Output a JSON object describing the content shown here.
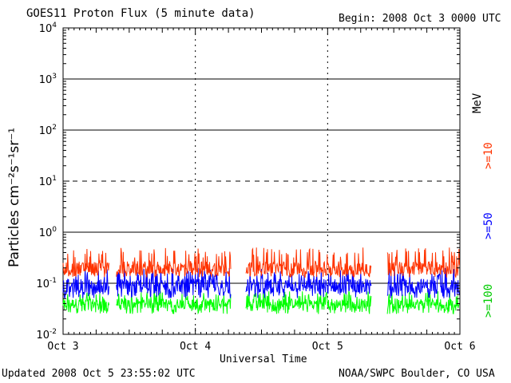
{
  "header": {
    "title": "GOES11 Proton Flux (5 minute data)",
    "begin": "Begin: 2008 Oct 3 0000 UTC"
  },
  "footer": {
    "updated": "Updated 2008 Oct  5 23:55:02 UTC",
    "credit": "NOAA/SWPC Boulder, CO USA"
  },
  "colors": {
    "ge10": "#ff3300",
    "ge50": "#0000ff",
    "ge100": "#00ff00",
    "axis": "#000000"
  },
  "chart_data": {
    "type": "line",
    "title": "GOES11 Proton Flux (5 minute data)",
    "xlabel": "Universal Time",
    "ylabel": "Particles cm⁻²s⁻¹sr⁻¹",
    "yscale": "log",
    "ylim": [
      0.01,
      10000
    ],
    "xlim": [
      0,
      3
    ],
    "x_unit": "days since 2008 Oct 3 0000 UTC",
    "x_ticks": [
      {
        "x": 0,
        "label": "Oct 3"
      },
      {
        "x": 1,
        "label": "Oct 4"
      },
      {
        "x": 2,
        "label": "Oct 5"
      },
      {
        "x": 3,
        "label": "Oct 6"
      }
    ],
    "y_ticks": [
      {
        "exp": -2,
        "base": "10",
        "sup": "-2"
      },
      {
        "exp": -1,
        "base": "10",
        "sup": "-1"
      },
      {
        "exp": 0,
        "base": "10",
        "sup": "0"
      },
      {
        "exp": 1,
        "base": "10",
        "sup": "1"
      },
      {
        "exp": 2,
        "base": "10",
        "sup": "2"
      },
      {
        "exp": 3,
        "base": "10",
        "sup": "3"
      },
      {
        "exp": 4,
        "base": "10",
        "sup": "4"
      }
    ],
    "reference_lines": [
      {
        "value": 1000,
        "style": "solid"
      },
      {
        "value": 100,
        "style": "solid"
      },
      {
        "value": 10,
        "style": "dashed"
      },
      {
        "value": 1,
        "style": "solid"
      },
      {
        "value": 0.1,
        "style": "solid"
      }
    ],
    "energy_unit": "MeV",
    "data_gaps": [
      [
        0.35,
        0.4
      ],
      [
        1.27,
        1.38
      ],
      [
        2.33,
        2.45
      ]
    ],
    "series": [
      {
        "name": ">=10",
        "color": "#ff3300",
        "typical": 0.2,
        "range": [
          0.13,
          0.5
        ]
      },
      {
        "name": ">=50",
        "color": "#0000ff",
        "typical": 0.09,
        "range": [
          0.05,
          0.2
        ]
      },
      {
        "name": ">=100",
        "color": "#00ff00",
        "typical": 0.04,
        "range": [
          0.025,
          0.07
        ]
      }
    ]
  }
}
